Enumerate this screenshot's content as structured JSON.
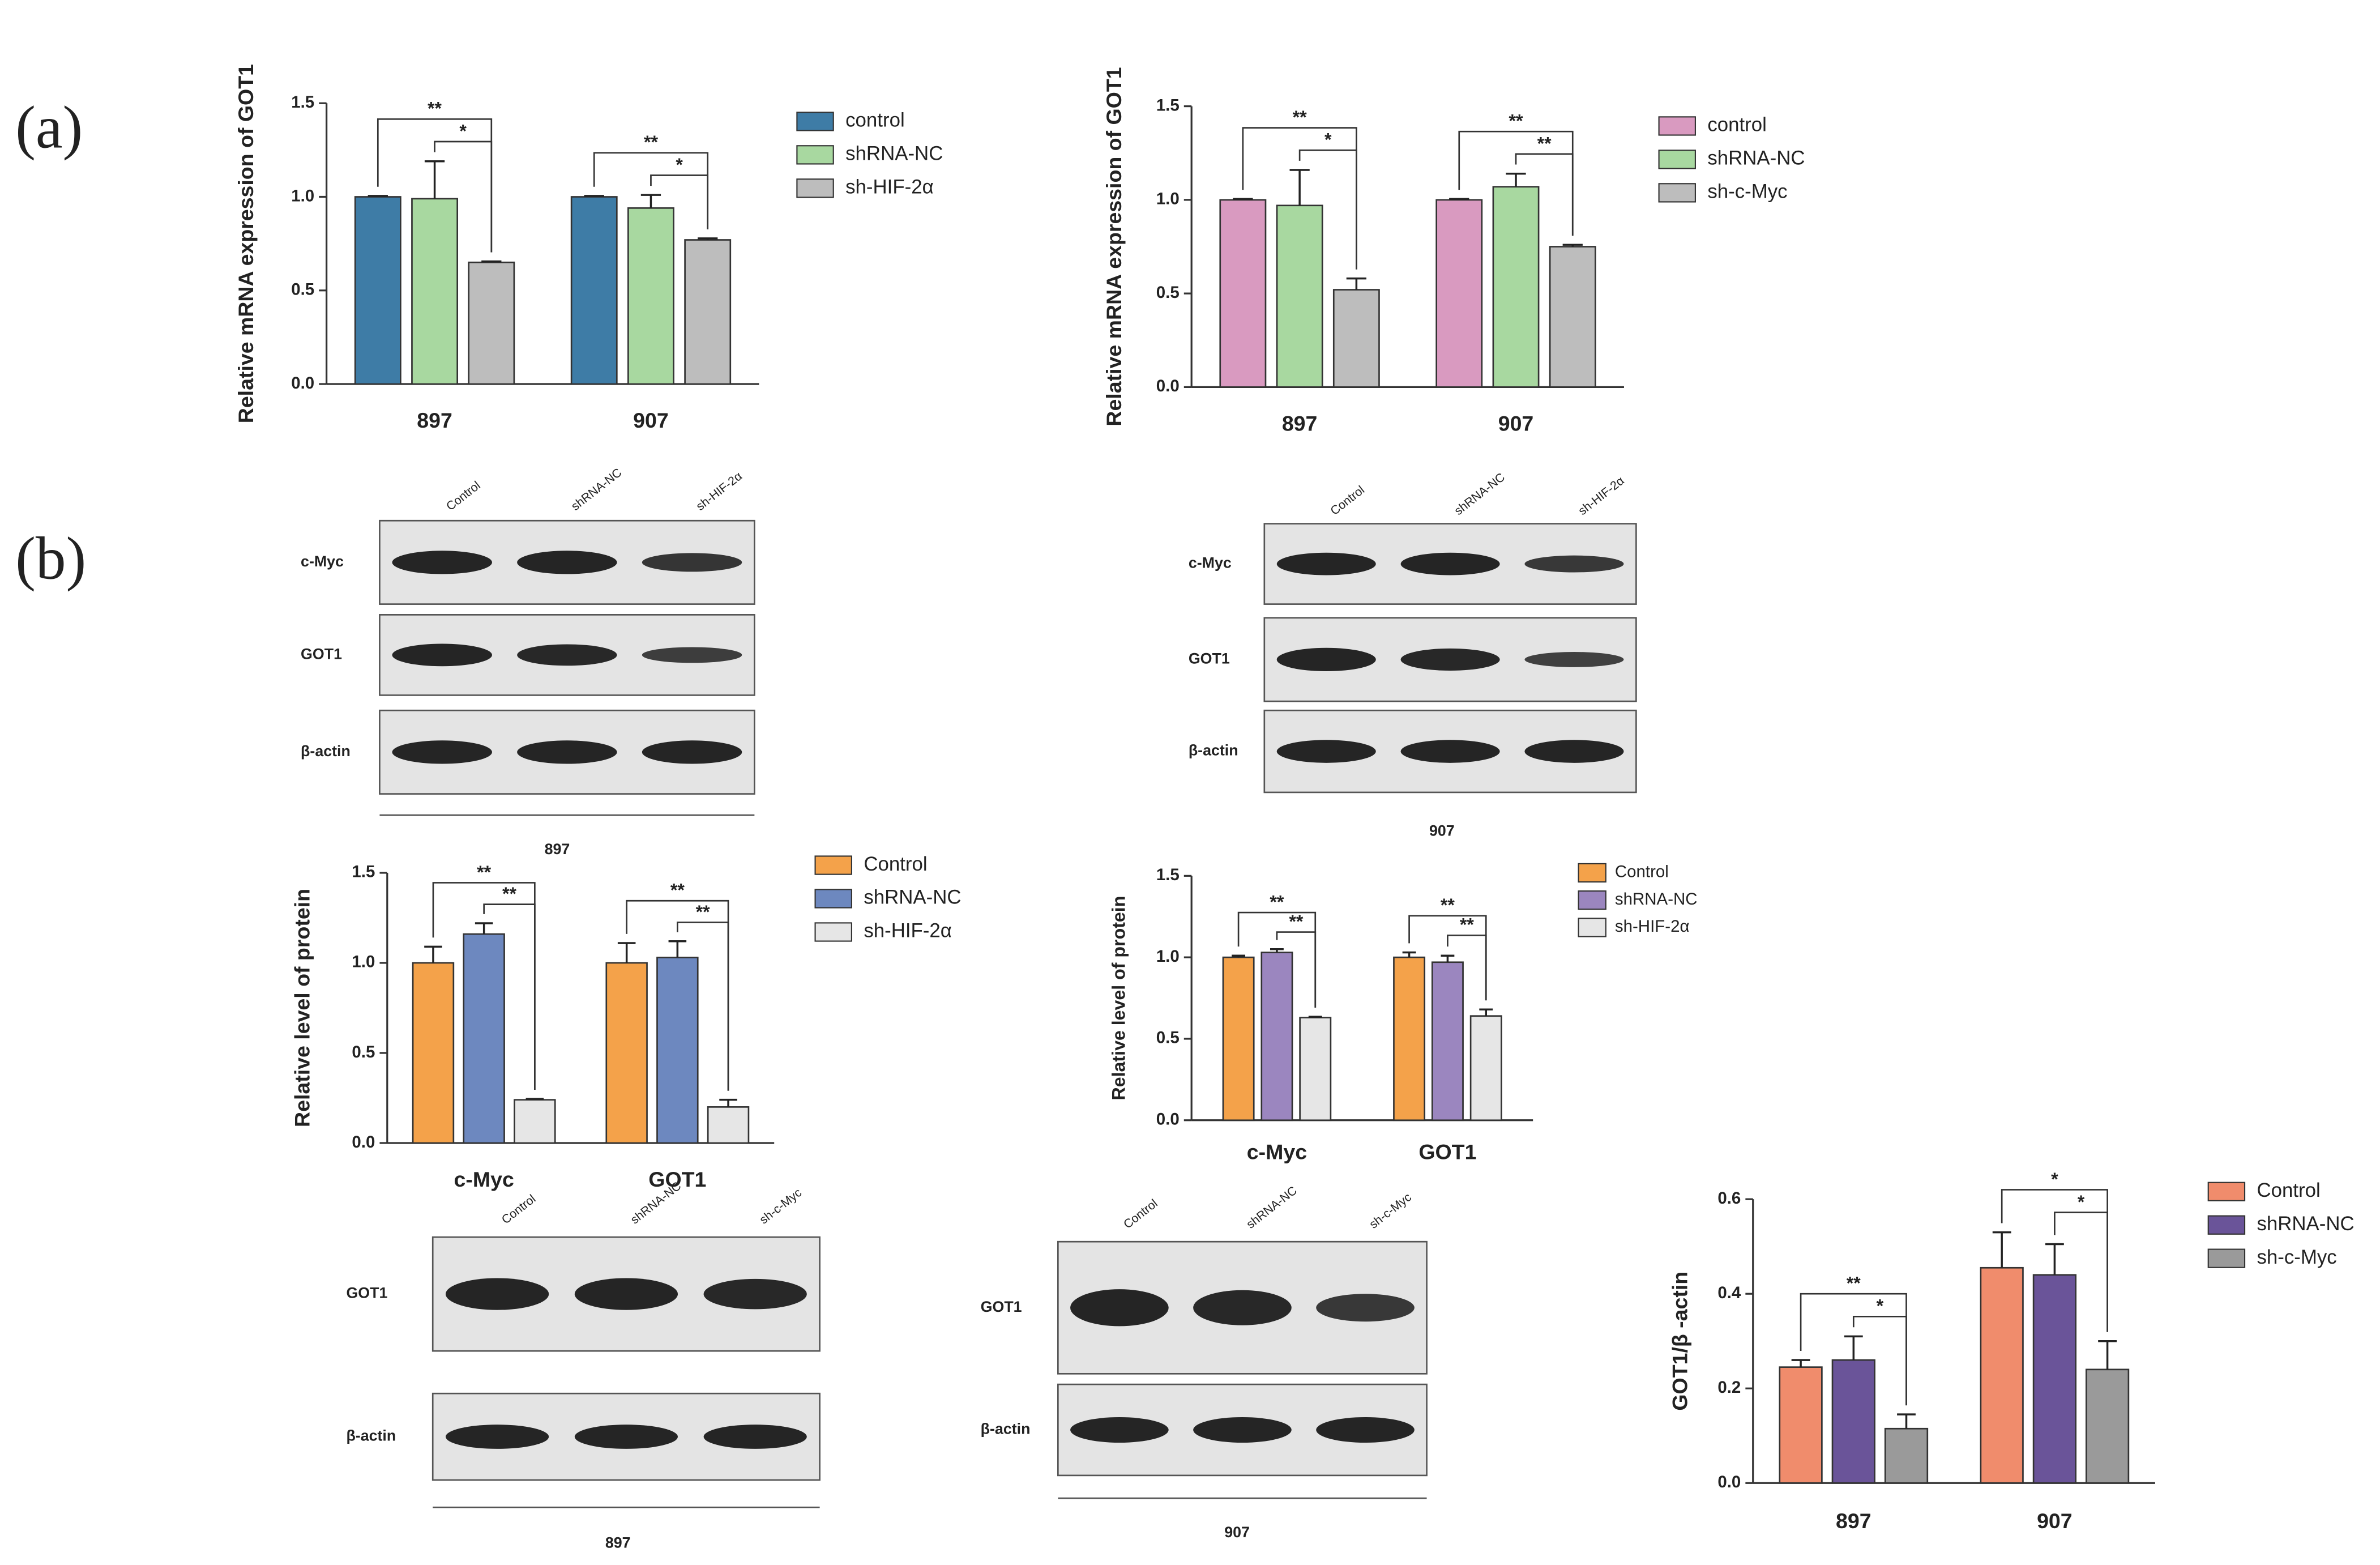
{
  "panels": [
    "(a)",
    "(b)"
  ],
  "chart_data": [
    {
      "type": "bar",
      "y_label": "Relative mRNA expression of  GOT1",
      "categories": [
        "897",
        "907"
      ],
      "series": [
        {
          "name": "control",
          "color": "#3e7ca6",
          "values": [
            1.0,
            1.0
          ],
          "errors": [
            0.005,
            0.005
          ]
        },
        {
          "name": "shRNA-NC",
          "color": "#a8d8a0",
          "values": [
            0.99,
            0.94
          ],
          "errors": [
            0.2,
            0.07
          ]
        },
        {
          "name": "sh-HIF-2α",
          "color": "#bdbdbd",
          "values": [
            0.65,
            0.77
          ],
          "errors": [
            0.005,
            0.008
          ]
        }
      ],
      "ylim": [
        0,
        1.5
      ],
      "yticks": [
        {
          "value": 0,
          "label": "0.0"
        },
        0.5,
        {
          "value": 1,
          "label": "1.0"
        },
        1.5
      ],
      "legend": "right",
      "significance": [
        {
          "group": 0,
          "series": [
            0,
            2
          ],
          "label": "**"
        },
        {
          "group": 0,
          "series": [
            1,
            2
          ],
          "label": "*"
        },
        {
          "group": 1,
          "series": [
            0,
            2
          ],
          "label": "**"
        },
        {
          "group": 1,
          "series": [
            1,
            2
          ],
          "label": "*"
        }
      ]
    },
    {
      "type": "bar",
      "y_label": "Relative mRNA expression of GOT1",
      "categories": [
        "897",
        "907"
      ],
      "series": [
        {
          "name": "control",
          "color": "#d99ac0",
          "values": [
            1.0,
            1.0
          ],
          "errors": [
            0.005,
            0.005
          ]
        },
        {
          "name": "shRNA-NC",
          "color": "#a8d8a0",
          "values": [
            0.97,
            1.07
          ],
          "errors": [
            0.19,
            0.07
          ]
        },
        {
          "name": "sh-c-Myc",
          "color": "#bdbdbd",
          "values": [
            0.52,
            0.75
          ],
          "errors": [
            0.06,
            0.01
          ]
        }
      ],
      "ylim": [
        0,
        1.5
      ],
      "yticks": [
        {
          "value": 0,
          "label": "0.0"
        },
        0.5,
        {
          "value": 1,
          "label": "1.0"
        },
        1.5
      ],
      "legend": "right",
      "significance": [
        {
          "group": 0,
          "series": [
            0,
            2
          ],
          "label": "**"
        },
        {
          "group": 0,
          "series": [
            1,
            2
          ],
          "label": "*"
        },
        {
          "group": 1,
          "series": [
            0,
            2
          ],
          "label": "**"
        },
        {
          "group": 1,
          "series": [
            1,
            2
          ],
          "label": "**"
        }
      ]
    },
    {
      "type": "bar",
      "y_label": "Relative level of protein",
      "categories": [
        "c-Myc",
        "GOT1"
      ],
      "series": [
        {
          "name": "Control",
          "color": "#f4a24a",
          "values": [
            1.0,
            1.0
          ],
          "errors": [
            0.09,
            0.11
          ]
        },
        {
          "name": "shRNA-NC",
          "color": "#6d88bf",
          "values": [
            1.16,
            1.03
          ],
          "errors": [
            0.06,
            0.09
          ]
        },
        {
          "name": "sh-HIF-2α",
          "color": "#e6e6e6",
          "values": [
            0.24,
            0.2
          ],
          "errors": [
            0.005,
            0.04
          ]
        }
      ],
      "ylim": [
        0,
        1.5
      ],
      "yticks": [
        {
          "value": 0,
          "label": "0.0"
        },
        0.5,
        {
          "value": 1,
          "label": "1.0"
        },
        1.5
      ],
      "legend": "right",
      "significance": [
        {
          "group": 0,
          "series": [
            0,
            2
          ],
          "label": "**"
        },
        {
          "group": 0,
          "series": [
            1,
            2
          ],
          "label": "**"
        },
        {
          "group": 1,
          "series": [
            0,
            2
          ],
          "label": "**"
        },
        {
          "group": 1,
          "series": [
            1,
            2
          ],
          "label": "**"
        }
      ]
    },
    {
      "type": "bar",
      "y_label": "Relative level of protein",
      "categories": [
        "c-Myc",
        "GOT1"
      ],
      "series": [
        {
          "name": "Control",
          "color": "#f4a24a",
          "values": [
            1.0,
            1.0
          ],
          "errors": [
            0.01,
            0.03
          ]
        },
        {
          "name": "shRNA-NC",
          "color": "#9b86bf",
          "values": [
            1.03,
            0.97
          ],
          "errors": [
            0.02,
            0.04
          ]
        },
        {
          "name": "sh-HIF-2α",
          "color": "#e6e6e6",
          "values": [
            0.63,
            0.64
          ],
          "errors": [
            0.005,
            0.04
          ]
        }
      ],
      "ylim": [
        0,
        1.5
      ],
      "yticks": [
        {
          "value": 0,
          "label": "0.0"
        },
        0.5,
        {
          "value": 1,
          "label": "1.0"
        },
        1.5
      ],
      "legend": "right",
      "significance": [
        {
          "group": 0,
          "series": [
            0,
            2
          ],
          "label": "**"
        },
        {
          "group": 0,
          "series": [
            1,
            2
          ],
          "label": "**"
        },
        {
          "group": 1,
          "series": [
            0,
            2
          ],
          "label": "**"
        },
        {
          "group": 1,
          "series": [
            1,
            2
          ],
          "label": "**"
        }
      ]
    },
    {
      "type": "bar",
      "y_label": "GOT1/β -actin",
      "categories": [
        "897",
        "907"
      ],
      "series": [
        {
          "name": "Control",
          "color": "#f08c6c",
          "values": [
            0.245,
            0.455
          ],
          "errors": [
            0.015,
            0.075
          ]
        },
        {
          "name": "shRNA-NC",
          "color": "#6a5499",
          "values": [
            0.26,
            0.44
          ],
          "errors": [
            0.05,
            0.065
          ]
        },
        {
          "name": "sh-c-Myc",
          "color": "#9a9a9a",
          "values": [
            0.115,
            0.24
          ],
          "errors": [
            0.03,
            0.06
          ]
        }
      ],
      "ylim": [
        0,
        0.6
      ],
      "yticks": [
        {
          "value": 0,
          "label": "0.0"
        },
        0.2,
        0.4,
        0.6
      ],
      "legend": "right",
      "significance": [
        {
          "group": 0,
          "series": [
            0,
            2
          ],
          "label": "**"
        },
        {
          "group": 0,
          "series": [
            1,
            2
          ],
          "label": "*"
        },
        {
          "group": 1,
          "series": [
            0,
            2
          ],
          "label": "*"
        },
        {
          "group": 1,
          "series": [
            1,
            2
          ],
          "label": "*"
        }
      ]
    }
  ],
  "blots": [
    {
      "lanes": [
        "Control",
        "shRNA-NC",
        "sh-HIF-2α"
      ],
      "rows": [
        "c-Myc",
        "GOT1",
        "β-actin"
      ],
      "caption": "897"
    },
    {
      "lanes": [
        "Control",
        "shRNA-NC",
        "sh-HIF-2α"
      ],
      "rows": [
        "c-Myc",
        "GOT1",
        "β-actin"
      ],
      "caption": "907"
    },
    {
      "lanes": [
        "Control",
        "shRNA-NC",
        "sh-c-Myc"
      ],
      "rows": [
        "GOT1",
        "β-actin"
      ],
      "caption": "897"
    },
    {
      "lanes": [
        "Control",
        "shRNA-NC",
        "sh-c-Myc"
      ],
      "rows": [
        "GOT1",
        "β-actin"
      ],
      "caption": "907"
    }
  ]
}
